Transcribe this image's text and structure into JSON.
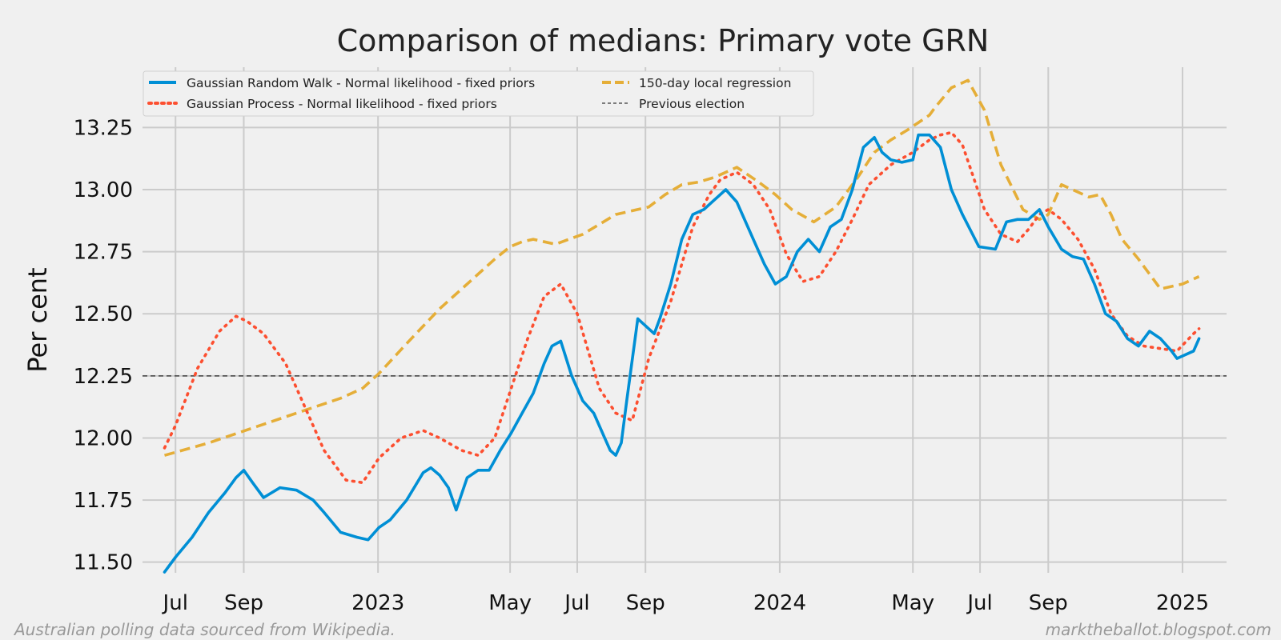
{
  "chart_data": {
    "type": "line",
    "title": "Comparison of medians: Primary vote GRN",
    "xlabel": "",
    "ylabel": "Per cent",
    "xlim": [
      0,
      985
    ],
    "ylim": [
      11.47,
      13.48
    ],
    "x_unit": "days since 1 Jun 2022",
    "x_ticks": [
      {
        "x": 30,
        "label": "Jul"
      },
      {
        "x": 92,
        "label": "Sep"
      },
      {
        "x": 214,
        "label": "2023"
      },
      {
        "x": 334,
        "label": "May"
      },
      {
        "x": 395,
        "label": "Jul"
      },
      {
        "x": 457,
        "label": "Sep"
      },
      {
        "x": 579,
        "label": "2024"
      },
      {
        "x": 700,
        "label": "May"
      },
      {
        "x": 761,
        "label": "Jul"
      },
      {
        "x": 823,
        "label": "Sep"
      },
      {
        "x": 945,
        "label": "2025"
      }
    ],
    "y_ticks": [
      11.5,
      11.75,
      12.0,
      12.25,
      12.5,
      12.75,
      13.0,
      13.25
    ],
    "y_tick_labels": [
      "11.50",
      "11.75",
      "12.00",
      "12.25",
      "12.50",
      "12.75",
      "13.00",
      "13.25"
    ],
    "reference_line": {
      "name": "Previous election",
      "y": 12.25
    },
    "legend_position": "top-left",
    "series": [
      {
        "name": "Gaussian Random Walk - Normal likelihood - fixed priors",
        "style": "solid",
        "color": "#008fd5",
        "x": [
          20,
          30,
          45,
          60,
          75,
          85,
          92,
          100,
          110,
          125,
          140,
          155,
          165,
          180,
          195,
          205,
          215,
          225,
          240,
          255,
          262,
          270,
          278,
          285,
          295,
          305,
          315,
          325,
          335,
          345,
          355,
          365,
          372,
          380,
          390,
          400,
          410,
          420,
          425,
          430,
          435,
          440,
          450,
          460,
          465,
          470,
          480,
          490,
          500,
          510,
          520,
          530,
          540,
          548,
          555,
          565,
          575,
          585,
          595,
          605,
          615,
          625,
          635,
          645,
          655,
          665,
          672,
          680,
          690,
          700,
          705,
          715,
          725,
          735,
          745,
          760,
          775,
          785,
          795,
          805,
          815,
          823,
          835,
          845,
          855,
          865,
          875,
          885,
          895,
          905,
          915,
          925,
          935,
          940,
          945,
          955,
          960
        ],
        "values": [
          11.46,
          11.52,
          11.6,
          11.7,
          11.78,
          11.84,
          11.87,
          11.82,
          11.76,
          11.8,
          11.79,
          11.75,
          11.7,
          11.62,
          11.6,
          11.59,
          11.64,
          11.67,
          11.75,
          11.86,
          11.88,
          11.85,
          11.8,
          11.71,
          11.84,
          11.87,
          11.87,
          11.95,
          12.02,
          12.1,
          12.18,
          12.3,
          12.37,
          12.39,
          12.25,
          12.15,
          12.1,
          12.0,
          11.95,
          11.93,
          11.98,
          12.15,
          12.48,
          12.44,
          12.42,
          12.48,
          12.62,
          12.8,
          12.9,
          12.92,
          12.96,
          13.0,
          12.95,
          12.87,
          12.8,
          12.7,
          12.62,
          12.65,
          12.75,
          12.8,
          12.75,
          12.85,
          12.88,
          13.0,
          13.17,
          13.21,
          13.15,
          13.12,
          13.11,
          13.12,
          13.22,
          13.22,
          13.17,
          13.0,
          12.9,
          12.77,
          12.76,
          12.87,
          12.88,
          12.88,
          12.92,
          12.85,
          12.76,
          12.73,
          12.72,
          12.62,
          12.5,
          12.47,
          12.4,
          12.37,
          12.43,
          12.4,
          12.35,
          12.32,
          12.33,
          12.35,
          12.4
        ]
      },
      {
        "name": "Gaussian Process - Normal likelihood - fixed priors",
        "style": "dotted",
        "color": "#fc4f30",
        "x": [
          20,
          30,
          50,
          70,
          85,
          95,
          110,
          130,
          150,
          165,
          185,
          200,
          215,
          235,
          255,
          270,
          290,
          305,
          320,
          335,
          350,
          365,
          380,
          395,
          415,
          430,
          445,
          460,
          480,
          500,
          515,
          525,
          540,
          555,
          570,
          585,
          600,
          615,
          630,
          645,
          660,
          680,
          700,
          715,
          725,
          735,
          745,
          765,
          780,
          795,
          805,
          815,
          823,
          835,
          850,
          865,
          880,
          895,
          910,
          925,
          940,
          955,
          960
        ],
        "values": [
          11.96,
          12.05,
          12.28,
          12.43,
          12.49,
          12.47,
          12.42,
          12.3,
          12.1,
          11.95,
          11.83,
          11.82,
          11.92,
          12.0,
          12.03,
          12.0,
          11.95,
          11.93,
          12.0,
          12.2,
          12.4,
          12.57,
          12.62,
          12.5,
          12.2,
          12.1,
          12.07,
          12.32,
          12.55,
          12.85,
          12.98,
          13.04,
          13.07,
          13.02,
          12.92,
          12.74,
          12.63,
          12.65,
          12.75,
          12.88,
          13.02,
          13.1,
          13.15,
          13.2,
          13.22,
          13.23,
          13.18,
          12.92,
          12.82,
          12.79,
          12.84,
          12.9,
          12.92,
          12.88,
          12.8,
          12.68,
          12.5,
          12.41,
          12.37,
          12.36,
          12.35,
          12.42,
          12.44
        ]
      },
      {
        "name": "150-day local regression",
        "style": "dashed",
        "color": "#e5ae38",
        "x": [
          20,
          60,
          100,
          140,
          180,
          200,
          215,
          240,
          270,
          300,
          320,
          334,
          345,
          355,
          375,
          400,
          430,
          460,
          475,
          490,
          505,
          520,
          540,
          560,
          575,
          590,
          610,
          630,
          650,
          665,
          680,
          695,
          705,
          715,
          720,
          735,
          750,
          765,
          780,
          800,
          815,
          823,
          835,
          845,
          860,
          870,
          880,
          890,
          905,
          925,
          945,
          960
        ],
        "values": [
          11.93,
          11.98,
          12.04,
          12.1,
          12.16,
          12.2,
          12.26,
          12.38,
          12.52,
          12.64,
          12.72,
          12.77,
          12.79,
          12.8,
          12.78,
          12.82,
          12.9,
          12.93,
          12.98,
          13.02,
          13.03,
          13.05,
          13.09,
          13.03,
          12.98,
          12.92,
          12.87,
          12.93,
          13.05,
          13.15,
          13.2,
          13.24,
          13.27,
          13.3,
          13.33,
          13.41,
          13.44,
          13.32,
          13.1,
          12.92,
          12.88,
          12.9,
          13.02,
          13.0,
          12.97,
          12.98,
          12.9,
          12.8,
          12.72,
          12.6,
          12.62,
          12.65
        ]
      }
    ]
  },
  "footnotes": {
    "left": "Australian polling data sourced from Wikipedia.",
    "right": "marktheballot.blogspot.com"
  }
}
